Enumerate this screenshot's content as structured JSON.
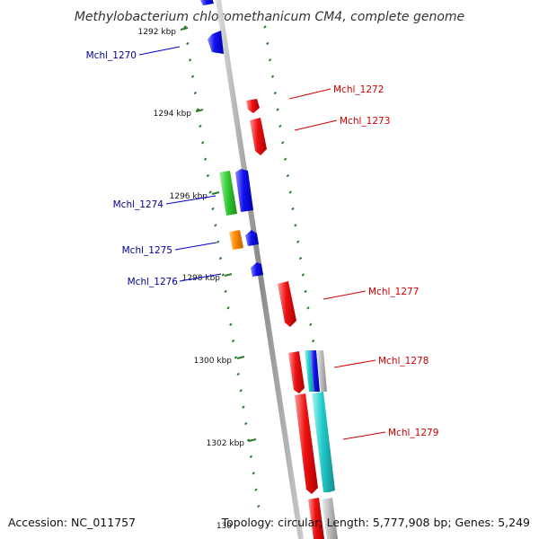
{
  "title": "Methylobacterium chloromethanicum CM4, complete genome",
  "accession": "Accession: NC_011757",
  "summary": "Topology: circular; Length: 5,777,908 bp; Genes: 5,249",
  "colors": {
    "minus_strand": "#0000ff",
    "plus_strand": "#ff0000",
    "label_minus": "#000099",
    "label_plus": "#cc0000",
    "green": "#33cc33",
    "orange": "#ff8800",
    "cyan": "#22cccc",
    "grey": "#bbbbbb",
    "tick": "#2a7a2a"
  },
  "kbp_labels": [
    "1292 kbp",
    "1294 kbp",
    "1296 kbp",
    "1298 kbp",
    "1300 kbp",
    "1302 kbp",
    "130"
  ],
  "left_genes": [
    {
      "name": "Mchl_1270"
    },
    {
      "name": "Mchl_1274"
    },
    {
      "name": "Mchl_1275"
    },
    {
      "name": "Mchl_1276"
    }
  ],
  "right_genes": [
    {
      "name": "Mchl_1272"
    },
    {
      "name": "Mchl_1273"
    },
    {
      "name": "Mchl_1277"
    },
    {
      "name": "Mchl_1278"
    },
    {
      "name": "Mchl_1279"
    }
  ]
}
